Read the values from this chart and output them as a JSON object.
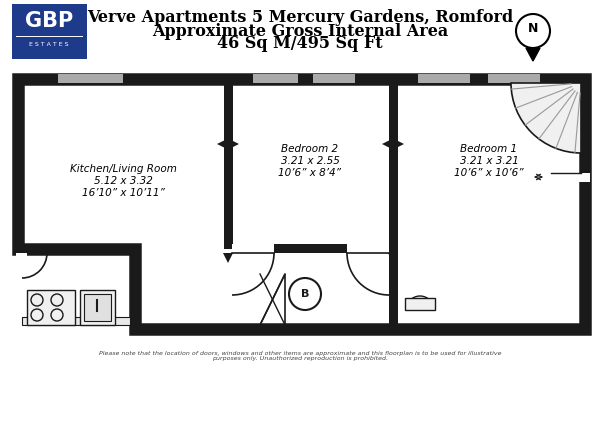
{
  "title_line1": "Verve Apartments 5 Mercury Gardens, Romford",
  "title_line2": "Approximate Gross Internal Area",
  "title_line3": "46 Sq M/495 Sq Ft",
  "disclaimer": "Please note that the location of doors, windows and other items are approximate and this floorplan is to be used for illustrative\npurposes only. Unauthorized reproduction is prohibited.",
  "bg_color": "#ffffff",
  "wall_color": "#1a1a1a",
  "floor_color": "#ffffff",
  "logo_bg": "#1e3a8a",
  "win_color": "#aaaaaa",
  "gray_fill": "#cccccc"
}
